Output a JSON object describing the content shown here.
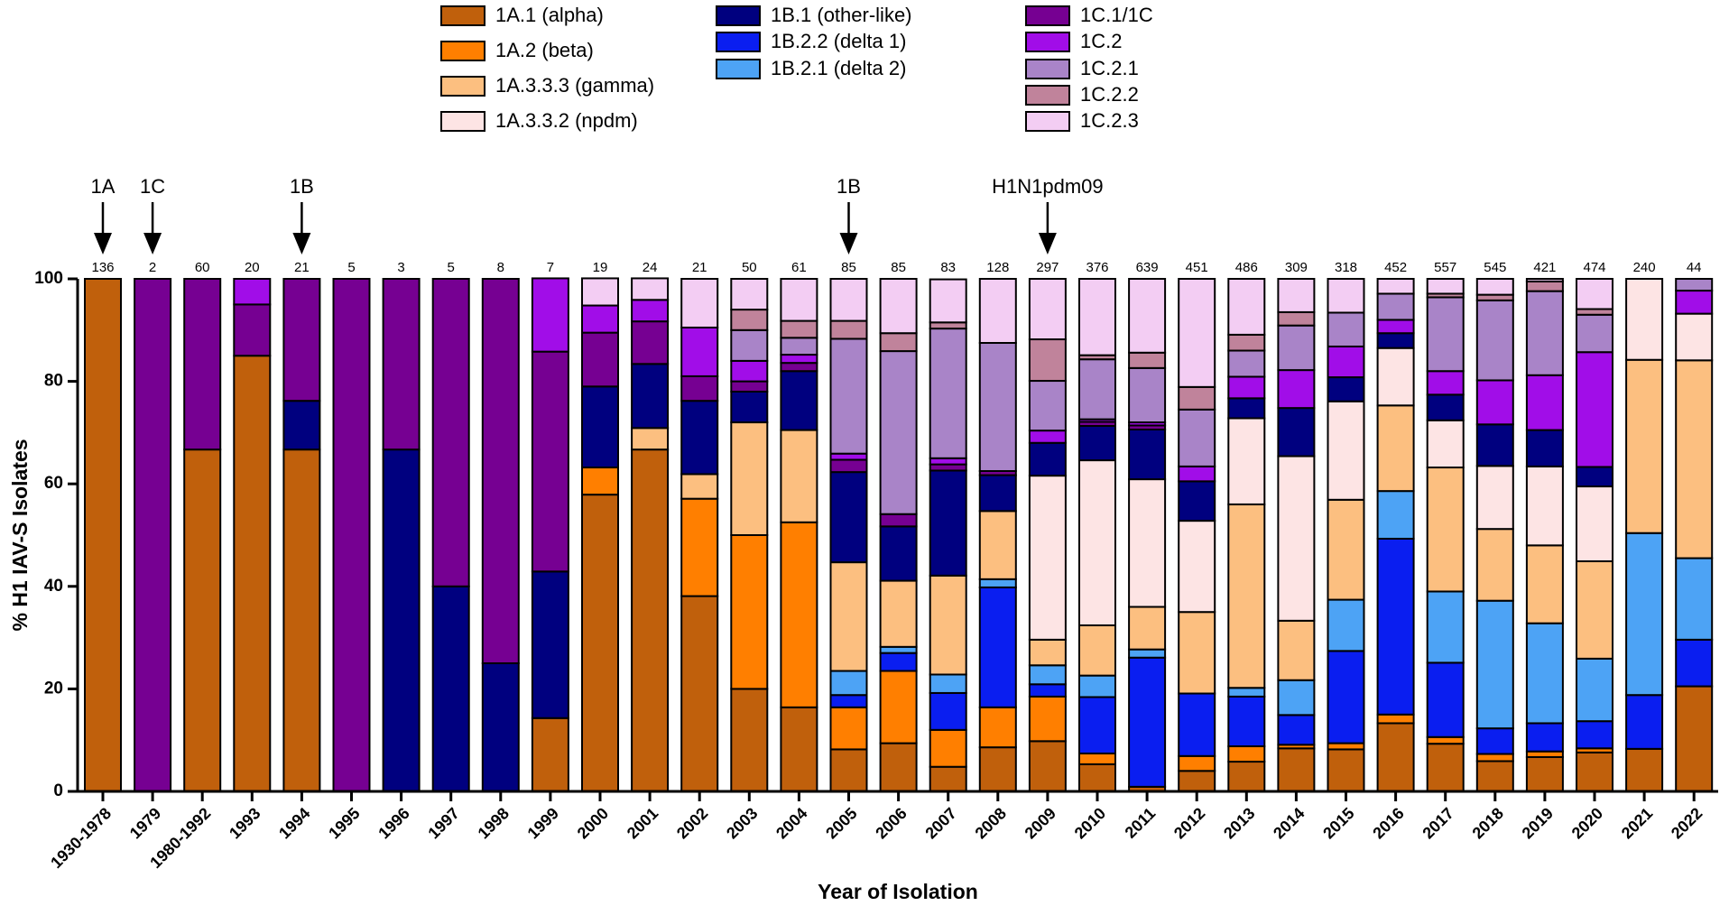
{
  "chart_data": {
    "type": "stacked_bar",
    "ylabel": "% H1 IAV-S Isolates",
    "xlabel": "Year of Isolation",
    "ylim": [
      0,
      100
    ],
    "yticks": [
      0,
      20,
      40,
      60,
      80,
      100
    ],
    "grid": false,
    "categories": [
      "1930-1978",
      "1979",
      "1980-1992",
      "1993",
      "1994",
      "1995",
      "1996",
      "1997",
      "1998",
      "1999",
      "2000",
      "2001",
      "2002",
      "2003",
      "2004",
      "2005",
      "2006",
      "2007",
      "2008",
      "2009",
      "2010",
      "2011",
      "2012",
      "2013",
      "2014",
      "2015",
      "2016",
      "2017",
      "2018",
      "2019",
      "2020",
      "2021",
      "2022"
    ],
    "sample_sizes": [
      136,
      2,
      60,
      20,
      21,
      5,
      3,
      5,
      8,
      7,
      19,
      24,
      21,
      50,
      61,
      85,
      85,
      83,
      128,
      297,
      376,
      639,
      451,
      486,
      309,
      318,
      452,
      557,
      545,
      421,
      474,
      240,
      44
    ],
    "annotations": [
      {
        "text": "1A",
        "category": "1930-1978"
      },
      {
        "text": "1C",
        "category": "1979"
      },
      {
        "text": "1B",
        "category": "1994"
      },
      {
        "text": "1B",
        "category": "2005"
      },
      {
        "text": "H1N1pdm09",
        "category": "2009"
      }
    ],
    "series": [
      {
        "name": "1A.1 (alpha)",
        "color": "#c0600c",
        "values": [
          100,
          0,
          66.7,
          85,
          66.7,
          0,
          0,
          0,
          0,
          14.3,
          57.9,
          66.7,
          38.1,
          20,
          16.4,
          8.2,
          9.4,
          4.8,
          8.6,
          9.8,
          5.3,
          0.9,
          4,
          5.8,
          8.4,
          8.2,
          13.3,
          9.3,
          5.9,
          6.7,
          7.6,
          8.3,
          20.5
        ]
      },
      {
        "name": "1A.2 (beta)",
        "color": "#ff7f00",
        "values": [
          0,
          0,
          0,
          0,
          0,
          0,
          0,
          0,
          0,
          0,
          5.3,
          0,
          19,
          30,
          36.1,
          8.2,
          14.1,
          7.2,
          7.8,
          8.7,
          2.1,
          0,
          2.9,
          3,
          0.7,
          1.2,
          1.7,
          1.3,
          1.4,
          1.1,
          0.8,
          0,
          0
        ]
      },
      {
        "name": "1B.2.2 (delta 1)",
        "color": "#0a1ef0",
        "values": [
          0,
          0,
          0,
          0,
          0,
          0,
          0,
          0,
          0,
          0,
          0,
          0,
          0,
          0,
          0,
          2.4,
          3.5,
          7.2,
          23.4,
          2.4,
          11,
          25.2,
          12.2,
          9.7,
          5.8,
          18,
          34.3,
          14.5,
          5,
          5.5,
          5.3,
          10.5,
          9.1
        ]
      },
      {
        "name": "1B.2.1 (delta 2)",
        "color": "#4da3f5",
        "values": [
          0,
          0,
          0,
          0,
          0,
          0,
          0,
          0,
          0,
          0,
          0,
          0,
          0,
          0,
          0,
          4.7,
          1.2,
          3.6,
          1.6,
          3.7,
          4.2,
          1.6,
          0,
          1.7,
          6.8,
          10,
          9.3,
          13.9,
          24.9,
          19.5,
          12.2,
          31.6,
          15.9
        ]
      },
      {
        "name": "1A.3.3.3 (gamma)",
        "color": "#fcbf80",
        "values": [
          0,
          0,
          0,
          0,
          0,
          0,
          0,
          0,
          0,
          0,
          0,
          4.2,
          4.8,
          22,
          18,
          21.2,
          12.9,
          19.3,
          13.3,
          5,
          9.8,
          8.3,
          15.9,
          35.8,
          11.6,
          19.5,
          16.7,
          24.2,
          14,
          15.2,
          19,
          33.8,
          38.6
        ]
      },
      {
        "name": "1A.3.3.2 (npdm)",
        "color": "#fde4e4",
        "values": [
          0,
          0,
          0,
          0,
          0,
          0,
          0,
          0,
          0,
          0,
          0,
          0,
          0,
          0,
          0,
          0,
          0,
          0,
          0,
          32,
          32.2,
          24.9,
          17.8,
          16.8,
          32.1,
          19.2,
          11.2,
          9.2,
          12.3,
          15.4,
          14.6,
          15.8,
          9.1
        ]
      },
      {
        "name": "1B.1 (other-like)",
        "color": "#00007f",
        "values": [
          0,
          0,
          0,
          0,
          9.5,
          0,
          66.7,
          40,
          25,
          28.6,
          15.8,
          12.5,
          14.3,
          6,
          11.5,
          17.6,
          10.6,
          20.5,
          7,
          6.4,
          6.7,
          9.7,
          7.7,
          3.9,
          9.4,
          4.7,
          2.9,
          5,
          8.1,
          7.1,
          3.8,
          0,
          0
        ]
      },
      {
        "name": "1C.1/1C",
        "color": "#760092",
        "values": [
          0,
          100,
          33.3,
          10,
          23.8,
          100,
          33.3,
          60,
          75,
          42.9,
          10.5,
          8.3,
          4.8,
          2,
          1.6,
          2.4,
          2.4,
          1.2,
          0.8,
          0,
          0.8,
          0.8,
          0,
          0,
          0,
          0,
          0,
          0,
          0,
          0,
          0,
          0,
          0
        ]
      },
      {
        "name": "1C.2",
        "color": "#a10de8",
        "values": [
          0,
          0,
          0,
          5,
          0,
          0,
          0,
          0,
          0,
          14.3,
          5.3,
          4.2,
          9.5,
          4,
          1.6,
          1.2,
          0,
          1.2,
          0,
          2.4,
          0.5,
          0.6,
          2.9,
          4.2,
          7.4,
          6,
          2.6,
          4.6,
          8.6,
          10.7,
          22.4,
          0,
          4.5
        ]
      },
      {
        "name": "1C.2.1",
        "color": "#a984c8",
        "values": [
          0,
          0,
          0,
          0,
          0,
          0,
          0,
          0,
          0,
          0,
          0,
          0,
          0,
          6,
          3.3,
          22.4,
          31.8,
          25.3,
          25,
          9.7,
          11.7,
          10.6,
          11.1,
          5.1,
          8.7,
          6.6,
          5.1,
          14.4,
          15.6,
          16.4,
          7.3,
          0,
          2.3
        ]
      },
      {
        "name": "1C.2.2",
        "color": "#c0839b",
        "values": [
          0,
          0,
          0,
          0,
          0,
          0,
          0,
          0,
          0,
          0,
          0,
          0,
          0,
          4,
          3.3,
          3.5,
          3.5,
          1.2,
          0,
          8.1,
          0.8,
          3,
          4.4,
          3.1,
          2.6,
          0,
          0,
          0.7,
          1.1,
          1.9,
          1.1,
          0,
          0
        ]
      },
      {
        "name": "1C.2.3",
        "color": "#f3cdf3",
        "values": [
          0,
          0,
          0,
          0,
          0,
          0,
          0,
          0,
          0,
          0,
          5.3,
          4.2,
          9.5,
          6,
          8.2,
          8.2,
          10.6,
          8.4,
          12.5,
          11.8,
          14.9,
          14.4,
          21.1,
          10.9,
          6.5,
          6.6,
          2.9,
          2.9,
          3.1,
          0.5,
          5.9,
          0,
          0
        ]
      }
    ]
  }
}
